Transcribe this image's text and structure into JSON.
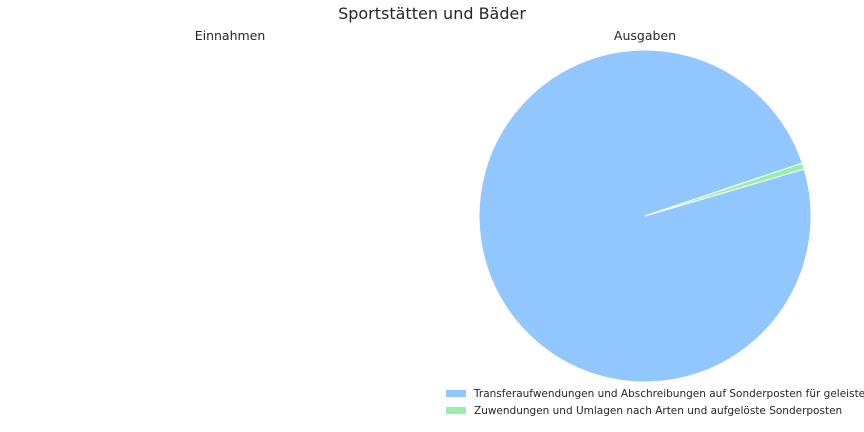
{
  "chart_data": [
    {
      "type": "pie",
      "title": "Einnahmen",
      "slices": []
    },
    {
      "type": "pie",
      "title": "Ausgaben",
      "slices": [
        {
          "label": "Transferaufwendungen und Abschreibungen auf Sonderposten für geleiste",
          "value": 99.4,
          "color": "#92c6ff"
        },
        {
          "label": "Zuwendungen und Umlagen nach Arten und aufgelöste Sonderposten",
          "value": 0.6,
          "color": "#97f0aa"
        }
      ],
      "start_angle_deg": 18.6,
      "legend_position": "bottom-right"
    }
  ],
  "figure": {
    "title": "Sportstätten und Bäder"
  }
}
